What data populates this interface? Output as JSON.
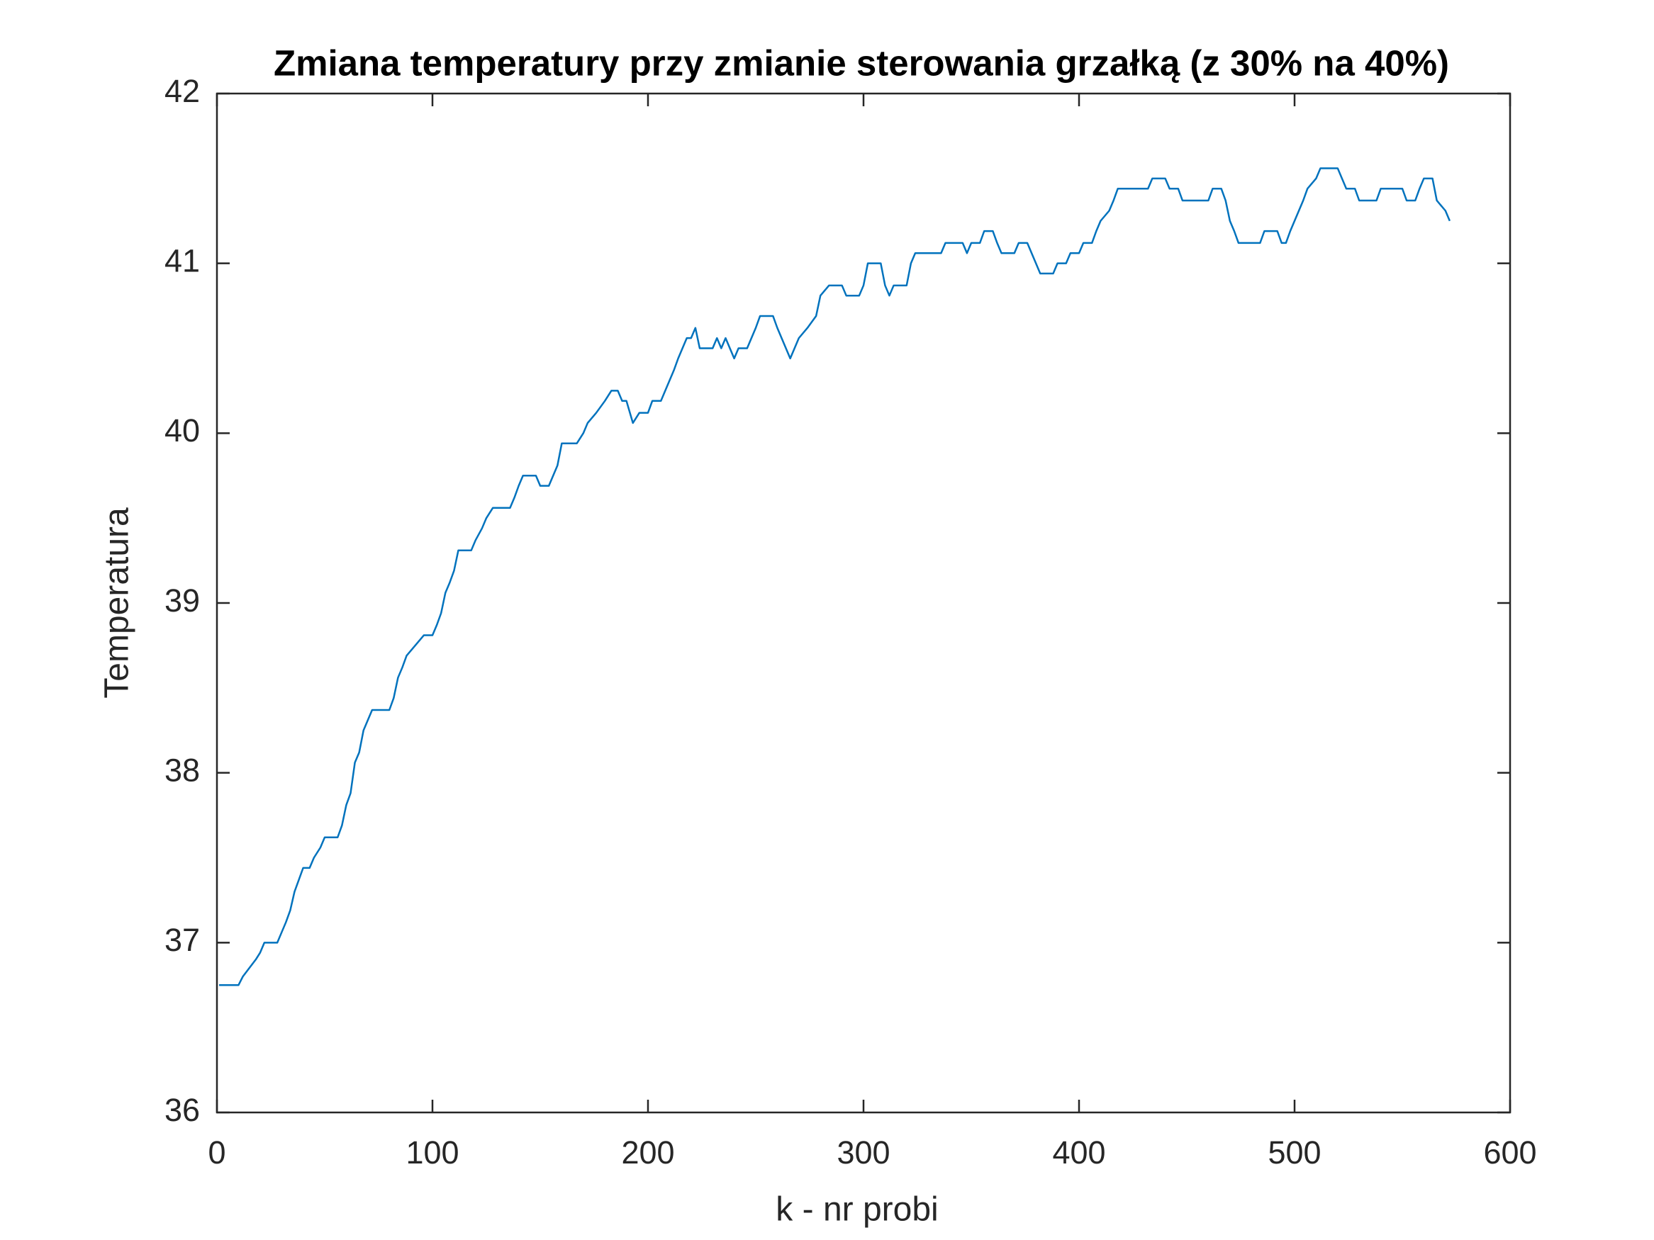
{
  "chart_data": {
    "type": "line",
    "title": "Zmiana temperatury przy zmianie sterowania grzałką (z 30% na 40%)",
    "x_label": "k - nr probi",
    "y_label": "Temperatura",
    "x": [
      1,
      10,
      12,
      15,
      18,
      20,
      22,
      28,
      30,
      32,
      34,
      36,
      38,
      40,
      43,
      45,
      48,
      50,
      56,
      58,
      60,
      62,
      64,
      66,
      68,
      70,
      72,
      80,
      82,
      84,
      86,
      88,
      92,
      96,
      100,
      102,
      104,
      106,
      108,
      110,
      112,
      118,
      120,
      123,
      125,
      128,
      136,
      138,
      140,
      142,
      148,
      150,
      154,
      156,
      158,
      160,
      167,
      170,
      172,
      176,
      180,
      183,
      186,
      188,
      190,
      193,
      196,
      200,
      202,
      206,
      208,
      210,
      212,
      214,
      216,
      218,
      220,
      222,
      224,
      230,
      232,
      234,
      236,
      238,
      240,
      242,
      246,
      248,
      250,
      252,
      258,
      260,
      262,
      264,
      266,
      268,
      270,
      274,
      278,
      280,
      284,
      290,
      292,
      298,
      300,
      302,
      308,
      310,
      312,
      314,
      320,
      322,
      324,
      336,
      338,
      346,
      348,
      350,
      354,
      356,
      360,
      362,
      364,
      370,
      372,
      376,
      378,
      380,
      382,
      388,
      390,
      394,
      396,
      400,
      402,
      406,
      408,
      410,
      414,
      416,
      418,
      432,
      434,
      440,
      442,
      446,
      448,
      460,
      462,
      466,
      468,
      470,
      472,
      474,
      484,
      486,
      492,
      494,
      496,
      498,
      500,
      502,
      504,
      506,
      510,
      512,
      520,
      522,
      524,
      528,
      530,
      538,
      540,
      550,
      552,
      556,
      558,
      560,
      564,
      566,
      570,
      572
    ],
    "values": [
      36.75,
      36.75,
      36.8,
      36.85,
      36.9,
      36.94,
      37.0,
      37.0,
      37.06,
      37.12,
      37.19,
      37.3,
      37.37,
      37.44,
      37.44,
      37.5,
      37.56,
      37.62,
      37.62,
      37.69,
      37.81,
      37.88,
      38.06,
      38.12,
      38.25,
      38.31,
      38.37,
      38.37,
      38.44,
      38.56,
      38.62,
      38.69,
      38.75,
      38.81,
      38.81,
      38.87,
      38.94,
      39.06,
      39.12,
      39.19,
      39.31,
      39.31,
      39.37,
      39.44,
      39.5,
      39.56,
      39.56,
      39.62,
      39.69,
      39.75,
      39.75,
      39.69,
      39.69,
      39.75,
      39.81,
      39.94,
      39.94,
      40.0,
      40.06,
      40.12,
      40.19,
      40.25,
      40.25,
      40.19,
      40.19,
      40.06,
      40.12,
      40.12,
      40.19,
      40.19,
      40.25,
      40.31,
      40.37,
      40.44,
      40.5,
      40.56,
      40.56,
      40.62,
      40.5,
      40.5,
      40.56,
      40.5,
      40.56,
      40.5,
      40.44,
      40.5,
      40.5,
      40.56,
      40.62,
      40.69,
      40.69,
      40.62,
      40.56,
      40.5,
      40.44,
      40.5,
      40.56,
      40.62,
      40.69,
      40.81,
      40.87,
      40.87,
      40.81,
      40.81,
      40.87,
      41.0,
      41.0,
      40.87,
      40.81,
      40.87,
      40.87,
      41.0,
      41.06,
      41.06,
      41.12,
      41.12,
      41.06,
      41.12,
      41.12,
      41.19,
      41.19,
      41.12,
      41.06,
      41.06,
      41.12,
      41.12,
      41.06,
      41.0,
      40.94,
      40.94,
      41.0,
      41.0,
      41.06,
      41.06,
      41.12,
      41.12,
      41.19,
      41.25,
      41.31,
      41.37,
      41.44,
      41.44,
      41.5,
      41.5,
      41.44,
      41.44,
      41.37,
      41.37,
      41.44,
      41.44,
      41.37,
      41.25,
      41.19,
      41.12,
      41.12,
      41.19,
      41.19,
      41.12,
      41.12,
      41.19,
      41.25,
      41.31,
      41.37,
      41.44,
      41.5,
      41.56,
      41.56,
      41.5,
      41.44,
      41.44,
      41.37,
      41.37,
      41.44,
      41.44,
      41.37,
      41.37,
      41.44,
      41.5,
      41.5,
      41.37,
      41.31,
      41.25
    ],
    "color": "#0072bd",
    "xlim": [
      0,
      600
    ],
    "xticks": [
      0,
      100,
      200,
      300,
      400,
      500,
      600
    ],
    "ylim": [
      36,
      42
    ],
    "yticks": [
      36,
      37,
      38,
      39,
      40,
      41,
      42
    ]
  }
}
